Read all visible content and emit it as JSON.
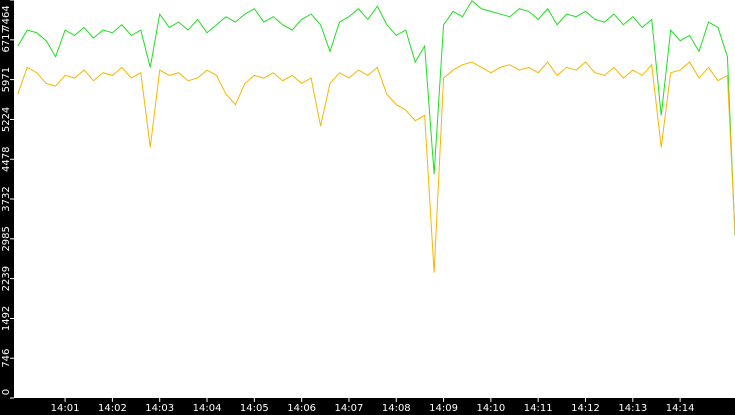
{
  "chart_data": {
    "type": "line",
    "x": [
      0,
      0.2,
      0.4,
      0.6,
      0.8,
      1,
      1.2,
      1.4,
      1.6,
      1.8,
      2,
      2.2,
      2.4,
      2.6,
      2.8,
      3,
      3.2,
      3.4,
      3.6,
      3.8,
      4,
      4.2,
      4.4,
      4.6,
      4.8,
      5,
      5.2,
      5.4,
      5.6,
      5.8,
      6,
      6.2,
      6.4,
      6.6,
      6.8,
      7,
      7.2,
      7.4,
      7.6,
      7.8,
      8,
      8.2,
      8.4,
      8.6,
      8.8,
      9,
      9.2,
      9.4,
      9.6,
      9.8,
      10,
      10.2,
      10.4,
      10.6,
      10.8,
      11,
      11.2,
      11.4,
      11.6,
      11.8,
      12,
      12.2,
      12.4,
      12.6,
      12.8,
      13,
      13.2,
      13.4,
      13.6,
      13.8,
      14,
      14.2,
      14.4,
      14.6,
      14.8,
      15,
      15.16
    ],
    "series": [
      {
        "color": "#22dd22",
        "values": [
          6600,
          6900,
          6850,
          6700,
          6400,
          6900,
          6800,
          6950,
          6750,
          6900,
          6850,
          7000,
          6800,
          6900,
          6200,
          7200,
          6950,
          7050,
          6900,
          7100,
          6850,
          7000,
          7150,
          7050,
          7200,
          7300,
          7050,
          7150,
          7000,
          6900,
          7100,
          7200,
          7000,
          6500,
          7050,
          7150,
          7300,
          7100,
          7350,
          7000,
          6800,
          6900,
          6300,
          6600,
          4200,
          7000,
          7250,
          7150,
          7450,
          7300,
          7250,
          7200,
          7150,
          7300,
          7250,
          7100,
          7300,
          7000,
          7200,
          7150,
          7250,
          7100,
          7050,
          7200,
          7000,
          7150,
          6950,
          7100,
          5300,
          6900,
          6700,
          6800,
          6500,
          7050,
          6950,
          6400,
          3050
        ]
      },
      {
        "color": "#f5b800",
        "values": [
          5700,
          6200,
          6100,
          5900,
          5850,
          6050,
          6000,
          6150,
          5950,
          6100,
          6050,
          6200,
          6000,
          6100,
          4700,
          6150,
          6050,
          6100,
          5950,
          6000,
          6150,
          6050,
          5700,
          5500,
          5900,
          6050,
          6000,
          6100,
          5950,
          6050,
          5900,
          6000,
          5100,
          5900,
          6100,
          6000,
          6150,
          6050,
          6200,
          5700,
          5500,
          5400,
          5200,
          5300,
          2350,
          6000,
          6150,
          6250,
          6300,
          6200,
          6100,
          6200,
          6250,
          6150,
          6200,
          6100,
          6300,
          6050,
          6200,
          6150,
          6300,
          6100,
          6050,
          6200,
          6000,
          6150,
          6050,
          6250,
          4700,
          6100,
          6150,
          6300,
          6000,
          6200,
          5950,
          6050,
          3100
        ]
      }
    ],
    "xlim": [
      -0.08,
      15.16
    ],
    "xticks": [
      {
        "value": 1,
        "label": "14:01"
      },
      {
        "value": 2,
        "label": "14:02"
      },
      {
        "value": 3,
        "label": "14:03"
      },
      {
        "value": 4,
        "label": "14:04"
      },
      {
        "value": 5,
        "label": "14:05"
      },
      {
        "value": 6,
        "label": "14:06"
      },
      {
        "value": 7,
        "label": "14:07"
      },
      {
        "value": 8,
        "label": "14:08"
      },
      {
        "value": 9,
        "label": "14:09"
      },
      {
        "value": 10,
        "label": "14:10"
      },
      {
        "value": 11,
        "label": "14:11"
      },
      {
        "value": 12,
        "label": "14:12"
      },
      {
        "value": 13,
        "label": "14:13"
      },
      {
        "value": 14,
        "label": "14:14"
      }
    ],
    "ylim": [
      0,
      7464
    ],
    "yticks": [
      0,
      746,
      1492,
      2239,
      2985,
      3732,
      4478,
      5224,
      5971,
      6717,
      7464
    ]
  }
}
